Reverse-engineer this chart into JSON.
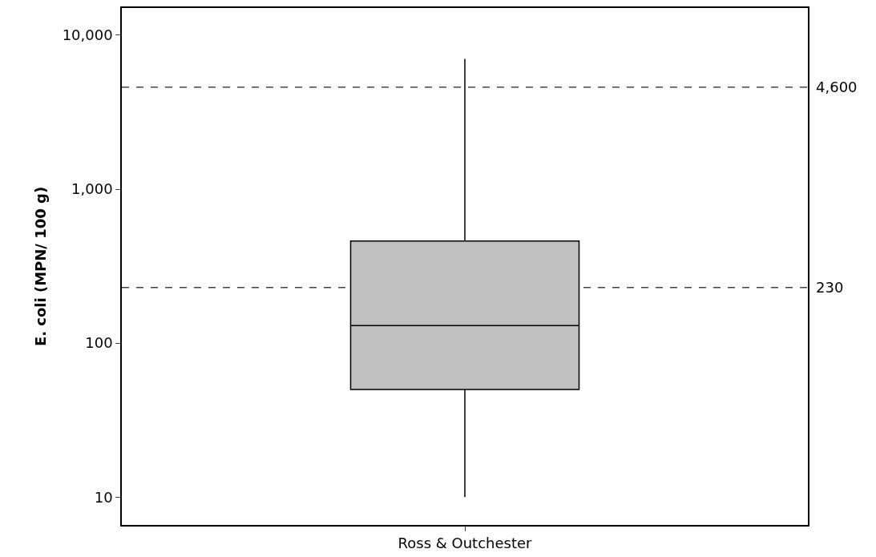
{
  "chart_data": {
    "type": "box",
    "ylabel": "E. coli (MPN/ 100 g)",
    "categories": [
      "Ross & Outchester"
    ],
    "boxes": [
      {
        "low": 10,
        "q1": 50,
        "median": 130,
        "q3": 460,
        "high": 7000
      }
    ],
    "color": "#c0c0c0",
    "log": true,
    "ylim": [
      6.6,
      15000
    ],
    "yticks": [
      {
        "value": 10,
        "label": "10"
      },
      {
        "value": 100,
        "label": "100"
      },
      {
        "value": 1000,
        "label": "1,000"
      },
      {
        "value": 10000,
        "label": "10,000"
      }
    ],
    "ref_lines": [
      {
        "axis": "y",
        "value": 4600,
        "label": "4,600",
        "line_style": "dashed"
      },
      {
        "axis": "y",
        "value": 230,
        "label": "230",
        "line_style": "dashed"
      }
    ],
    "grid": false
  }
}
